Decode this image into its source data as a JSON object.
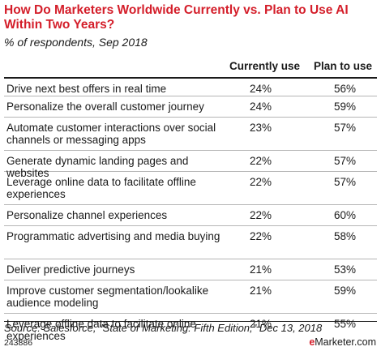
{
  "chart_data": {
    "type": "table",
    "title": "How Do Marketers Worldwide Currently vs. Plan to Use AI Within Two Years?",
    "subtitle": "% of respondents, Sep 2018",
    "columns": [
      "Currently use",
      "Plan to use"
    ],
    "rows": [
      {
        "label": "Drive next best offers in real time",
        "current": "24%",
        "plan": "56%"
      },
      {
        "label": "Personalize the overall customer journey",
        "current": "24%",
        "plan": "59%"
      },
      {
        "label": "Automate customer interactions over social channels or messaging apps",
        "current": "23%",
        "plan": "57%"
      },
      {
        "label": "Generate dynamic landing pages and websites",
        "current": "22%",
        "plan": "57%"
      },
      {
        "label": "Leverage online data to facilitate offline experiences",
        "current": "22%",
        "plan": "57%"
      },
      {
        "label": "Personalize channel experiences",
        "current": "22%",
        "plan": "60%"
      },
      {
        "label": "Programmatic advertising and media buying",
        "current": "22%",
        "plan": "58%"
      },
      {
        "label": "Deliver predictive journeys",
        "current": "21%",
        "plan": "53%"
      },
      {
        "label": "Improve customer segmentation/lookalike audience modeling",
        "current": "21%",
        "plan": "59%"
      },
      {
        "label": "Leverage offline data to facilitate online experiences",
        "current": "21%",
        "plan": "55%"
      }
    ],
    "source": "Source: Salesforce, \"State of Marketing: Fifth Edition,\" Dec 13, 2018",
    "chart_id": "243886",
    "brand_prefix": "e",
    "brand_rest": "Marketer",
    "brand_suffix": ".com"
  }
}
